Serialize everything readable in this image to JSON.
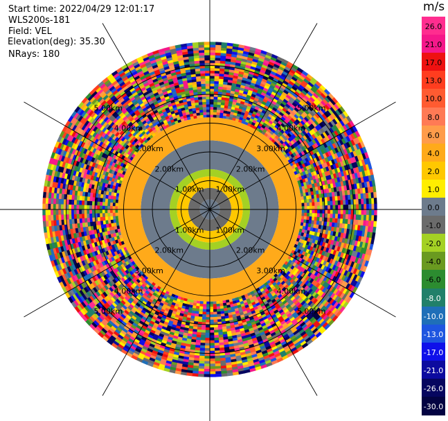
{
  "header": {
    "start_time": "Start time: 2022/04/29 12:01:17",
    "instrument": "WLS200s-181",
    "field": "Field: VEL",
    "elevation": "Elevation(deg): 35.30",
    "nrays": "NRays: 180"
  },
  "colorbar": {
    "unit": "m/s",
    "ticks": [
      "26.0",
      "21.0",
      "17.0",
      "13.0",
      "10.0",
      "8.0",
      "6.0",
      "4.0",
      "2.0",
      "1.0",
      "0.0",
      "-1.0",
      "-2.0",
      "-4.0",
      "-6.0",
      "-8.0",
      "-10.0",
      "-13.0",
      "-17.0",
      "-21.0",
      "-26.0",
      "-30.0"
    ],
    "colors": [
      "#ff2d8f",
      "#f5188a",
      "#ee1111",
      "#ff3d1f",
      "#ff5b31",
      "#ff7a55",
      "#ff9c4a",
      "#ffaa1a",
      "#ffc800",
      "#ffee00",
      "#6d7b8c",
      "#6b6b6b",
      "#a4d124",
      "#6a9a20",
      "#2c8c30",
      "#21806a",
      "#1f6fb8",
      "#1e55e0",
      "#0f10ea",
      "#0c0b9f",
      "#06065f",
      "#030342"
    ]
  },
  "chart_data": {
    "type": "heatmap",
    "projection": "polar (PPI scan)",
    "field": "VEL",
    "units": "m/s",
    "nrays": 180,
    "elevation_deg": 35.3,
    "range_rings_km": [
      1.0,
      2.0,
      3.0,
      4.0,
      5.0
    ],
    "ring_labels": [
      "1.00km",
      "2.00km",
      "3.00km",
      "4.00km",
      "5.00km"
    ],
    "radial_lines_every_deg": 30,
    "value_range": [
      -30.0,
      26.0
    ],
    "velocity_structure": [
      {
        "range_km": [
          0.0,
          0.35
        ],
        "value_ms": 0.0
      },
      {
        "range_km": [
          0.35,
          0.75
        ],
        "value_ms": -1.5
      },
      {
        "range_km": [
          0.75,
          1.15
        ],
        "value_ms": 2.0
      },
      {
        "range_km": [
          1.15,
          1.4
        ],
        "value_ms": -3.0
      },
      {
        "range_km": [
          1.4,
          2.4
        ],
        "value_ms": 0.0
      },
      {
        "range_km": [
          2.4,
          3.2
        ],
        "value_ms": 3.0
      },
      {
        "range_km": [
          3.2,
          5.8
        ],
        "value_ms": "noise"
      }
    ]
  }
}
